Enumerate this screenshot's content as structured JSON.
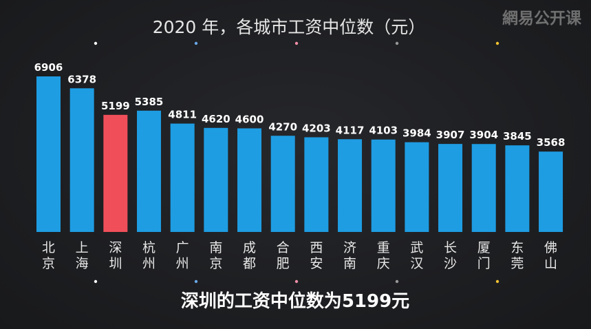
{
  "watermark": "網易公开课",
  "caption": "深圳的工资中位数为5199元",
  "colors": {
    "bar": "#1e9de3",
    "highlight": "#f04f5a",
    "background": "#1e1f22",
    "dot_colors": [
      "#ffffff",
      "#6aa8e8",
      "#f08fa8",
      "#9a9a9a",
      "#f2c230"
    ]
  },
  "chart_data": {
    "type": "bar",
    "title": "2020 年，各城市工资中位数（元）",
    "categories": [
      "北京",
      "上海",
      "深圳",
      "杭州",
      "广州",
      "南京",
      "成都",
      "合肥",
      "西安",
      "济南",
      "重庆",
      "武汉",
      "长沙",
      "厦门",
      "东莞",
      "佛山"
    ],
    "values": [
      6906,
      6378,
      5199,
      5385,
      4811,
      4620,
      4600,
      4270,
      4203,
      4117,
      4103,
      3984,
      3907,
      3904,
      3845,
      3568
    ],
    "highlight_index": 2,
    "ylim": [
      0,
      7500
    ],
    "xlabel": "",
    "ylabel": "",
    "grid": false,
    "legend": "none"
  }
}
